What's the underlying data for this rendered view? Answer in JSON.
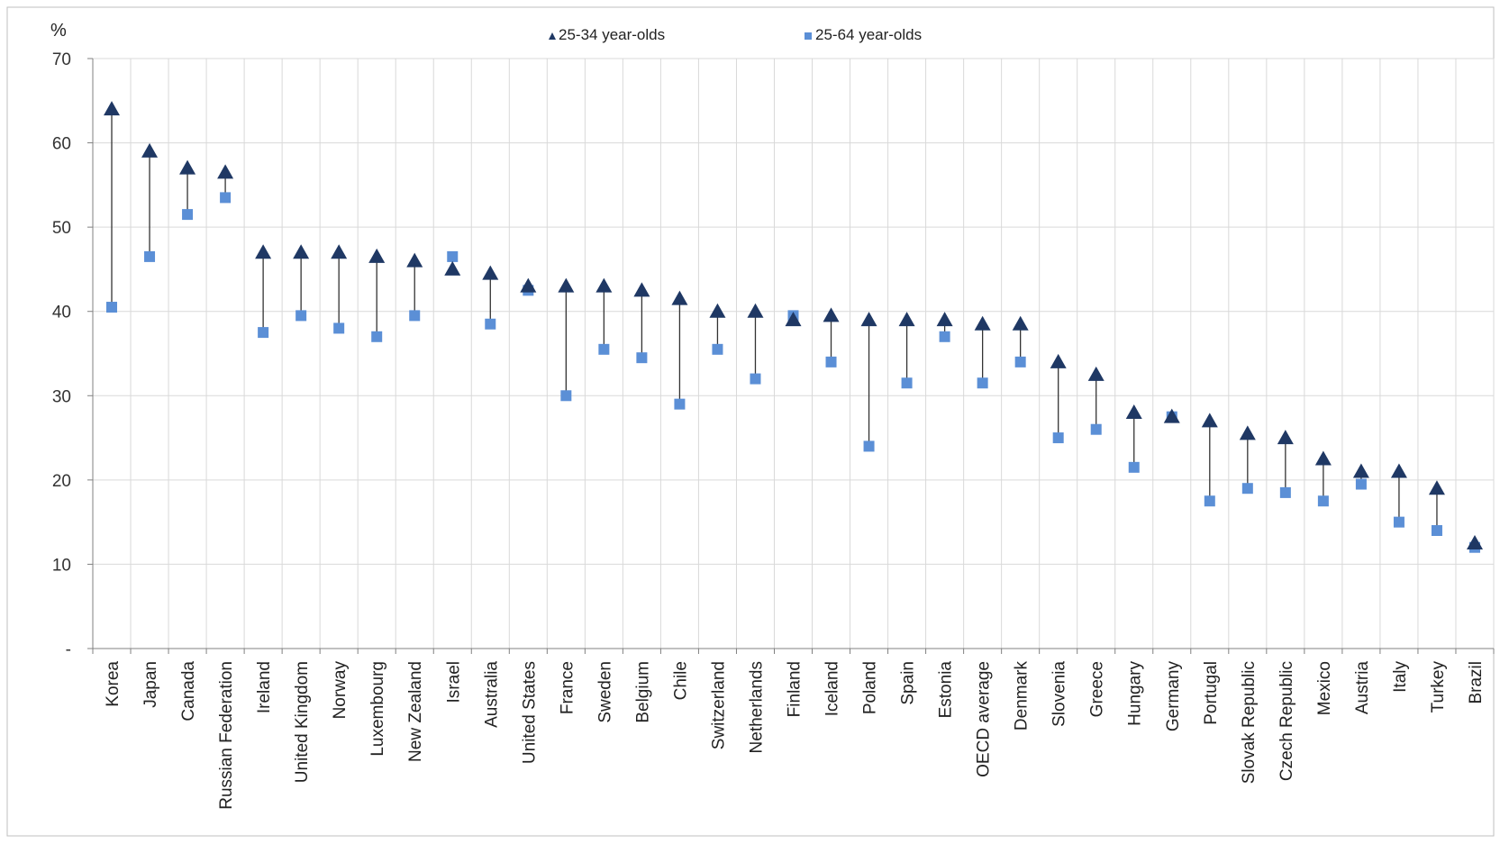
{
  "chart_data": {
    "type": "scatter",
    "ylabel": "%",
    "ylim": [
      0,
      70
    ],
    "yticks": [
      {
        "value": 0,
        "label": "-"
      },
      {
        "value": 10,
        "label": "10"
      },
      {
        "value": 20,
        "label": "20"
      },
      {
        "value": 30,
        "label": "30"
      },
      {
        "value": 40,
        "label": "40"
      },
      {
        "value": 50,
        "label": "50"
      },
      {
        "value": 60,
        "label": "60"
      },
      {
        "value": 70,
        "label": "70"
      }
    ],
    "grid": true,
    "legend_position": "top-center",
    "categories": [
      "Korea",
      "Japan",
      "Canada",
      "Russian Federation",
      "Ireland",
      "United Kingdom",
      "Norway",
      "Luxembourg",
      "New Zealand",
      "Israel",
      "Australia",
      "United States",
      "France",
      "Sweden",
      "Belgium",
      "Chile",
      "Switzerland",
      "Netherlands",
      "Finland",
      "Iceland",
      "Poland",
      "Spain",
      "Estonia",
      "OECD average",
      "Denmark",
      "Slovenia",
      "Greece",
      "Hungary",
      "Germany",
      "Portugal",
      "Slovak Republic",
      "Czech Republic",
      "Mexico",
      "Austria",
      "Italy",
      "Turkey",
      "Brazil"
    ],
    "series": [
      {
        "name": "25-34 year-olds",
        "marker": "triangle",
        "color": "#1f3864",
        "values": [
          64,
          59,
          57,
          56.5,
          47,
          47,
          47,
          46.5,
          46,
          45,
          44.5,
          43,
          43,
          43,
          42.5,
          41.5,
          40,
          40,
          39,
          39.5,
          39,
          39,
          39,
          38.5,
          38.5,
          34,
          32.5,
          28,
          27.5,
          27,
          25.5,
          25,
          22.5,
          21,
          21,
          19,
          12.5
        ]
      },
      {
        "name": "25-64 year-olds",
        "marker": "square",
        "color": "#5b8fd6",
        "values": [
          40.5,
          46.5,
          51.5,
          53.5,
          37.5,
          39.5,
          38,
          37,
          39.5,
          46.5,
          38.5,
          42.5,
          30,
          35.5,
          34.5,
          29,
          35.5,
          32,
          39.5,
          34,
          24,
          31.5,
          37,
          31.5,
          34,
          25,
          26,
          21.5,
          27.5,
          17.5,
          19,
          18.5,
          17.5,
          19.5,
          15,
          14,
          12
        ]
      }
    ],
    "connector_color": "#333333"
  }
}
